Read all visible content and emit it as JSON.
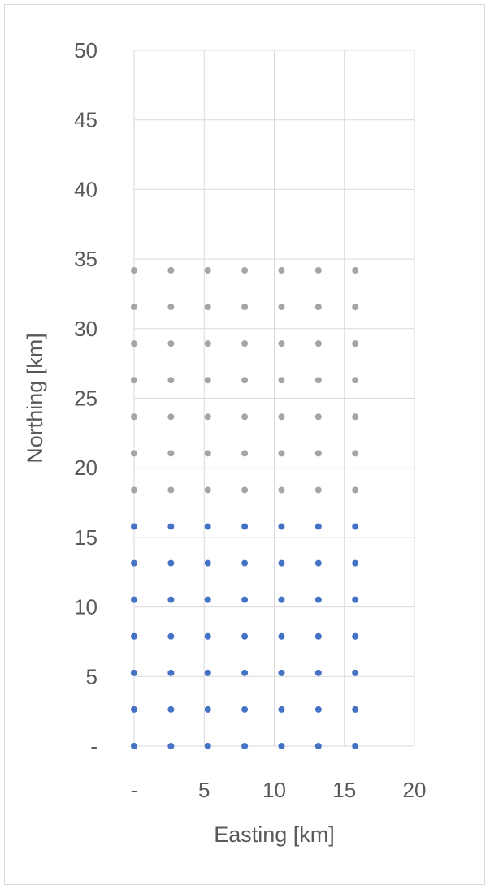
{
  "chart_data": {
    "type": "scatter",
    "xlabel": "Easting [km]",
    "ylabel": "Northing [km]",
    "xlim": [
      0,
      20
    ],
    "ylim": [
      0,
      50
    ],
    "x_ticks": [
      {
        "value": 0,
        "label": "-"
      },
      {
        "value": 5,
        "label": "5"
      },
      {
        "value": 10,
        "label": "10"
      },
      {
        "value": 15,
        "label": "15"
      },
      {
        "value": 20,
        "label": "20"
      }
    ],
    "y_ticks": [
      {
        "value": 0,
        "label": "-"
      },
      {
        "value": 5,
        "label": "5"
      },
      {
        "value": 10,
        "label": "10"
      },
      {
        "value": 15,
        "label": "15"
      },
      {
        "value": 20,
        "label": "20"
      },
      {
        "value": 25,
        "label": "25"
      },
      {
        "value": 30,
        "label": "30"
      },
      {
        "value": 35,
        "label": "35"
      },
      {
        "value": 40,
        "label": "40"
      },
      {
        "value": 45,
        "label": "45"
      },
      {
        "value": 50,
        "label": "50"
      }
    ],
    "grid": true,
    "legend": "none",
    "series": [
      {
        "color": "#4472c4",
        "x": [
          0,
          2.63,
          5.26,
          7.89,
          10.52,
          13.15,
          15.78
        ],
        "y": [
          0,
          2.63,
          5.26,
          7.89,
          10.52,
          13.15,
          15.78
        ]
      },
      {
        "color": "#a5a5a5",
        "x": [
          0,
          2.63,
          5.26,
          7.89,
          10.52,
          13.15,
          15.78
        ],
        "y": [
          18.41,
          21.04,
          23.67,
          26.3,
          28.93,
          31.56,
          34.19
        ]
      }
    ]
  }
}
